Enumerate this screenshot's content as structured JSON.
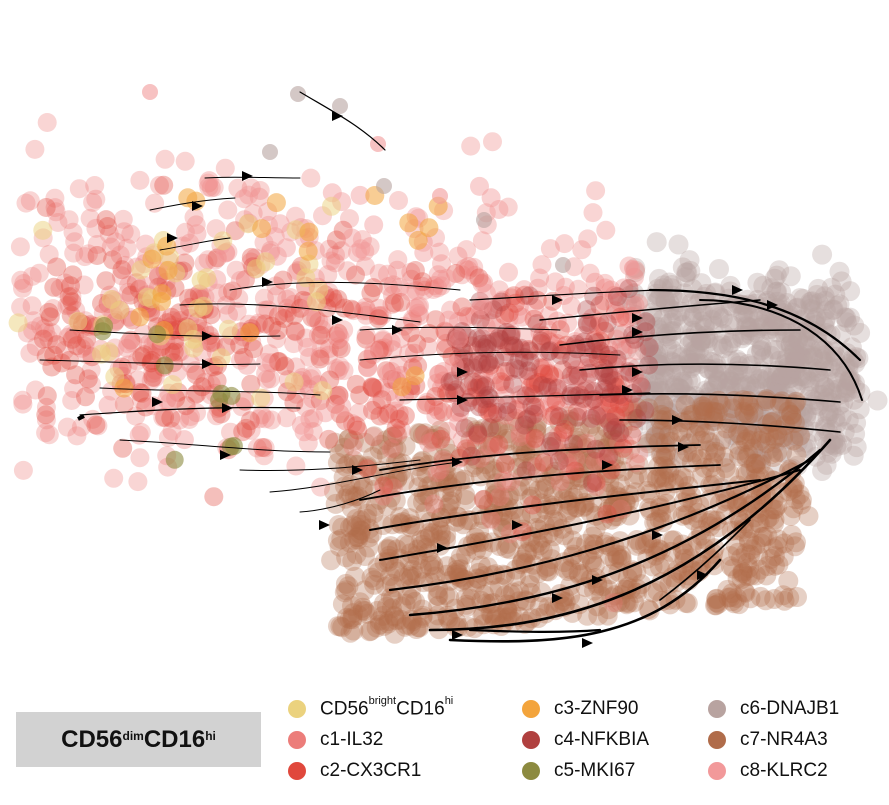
{
  "panel": {
    "main": "CD56",
    "sup1": "dim",
    "mid": "CD16",
    "sup2": "hi"
  },
  "legend": {
    "items": [
      {
        "id": "cd56bright",
        "label_main": "CD56",
        "label_sup1": "bright",
        "label_mid": "CD16",
        "label_sup2": "hi",
        "color": "#ebd27e"
      },
      {
        "id": "c1",
        "label": "c1-IL32",
        "color": "#ec7d7a"
      },
      {
        "id": "c2",
        "label": "c2-CX3CR1",
        "color": "#e0483c"
      },
      {
        "id": "c3",
        "label": "c3-ZNF90",
        "color": "#f3a43c"
      },
      {
        "id": "c4",
        "label": "c4-NFKBIA",
        "color": "#b0403f"
      },
      {
        "id": "c5",
        "label": "c5-MKI67",
        "color": "#8c8a3f"
      },
      {
        "id": "c6",
        "label": "c6-DNAJB1",
        "color": "#b8a3a0"
      },
      {
        "id": "c7",
        "label": "c7-NR4A3",
        "color": "#b06c4a"
      },
      {
        "id": "c8",
        "label": "c8-KLRC2",
        "color": "#f2999a"
      }
    ]
  },
  "chart_data": {
    "type": "scatter",
    "description_kind": "embedding with velocity streamlines",
    "title": "",
    "xlabel": "",
    "ylabel": "",
    "axes_visible": false,
    "legend_placement": "bottom",
    "series": [
      {
        "id": "cd56bright",
        "n_points_approx": 40
      },
      {
        "id": "c1",
        "n_points_approx": 600
      },
      {
        "id": "c2",
        "n_points_approx": 350
      },
      {
        "id": "c3",
        "n_points_approx": 20
      },
      {
        "id": "c4",
        "n_points_approx": 150
      },
      {
        "id": "c5",
        "n_points_approx": 10
      },
      {
        "id": "c6",
        "n_points_approx": 900
      },
      {
        "id": "c7",
        "n_points_approx": 1500
      },
      {
        "id": "c8",
        "n_points_approx": 60
      }
    ],
    "streamline_color": "#000000",
    "streamline_direction": "left-to-right"
  }
}
